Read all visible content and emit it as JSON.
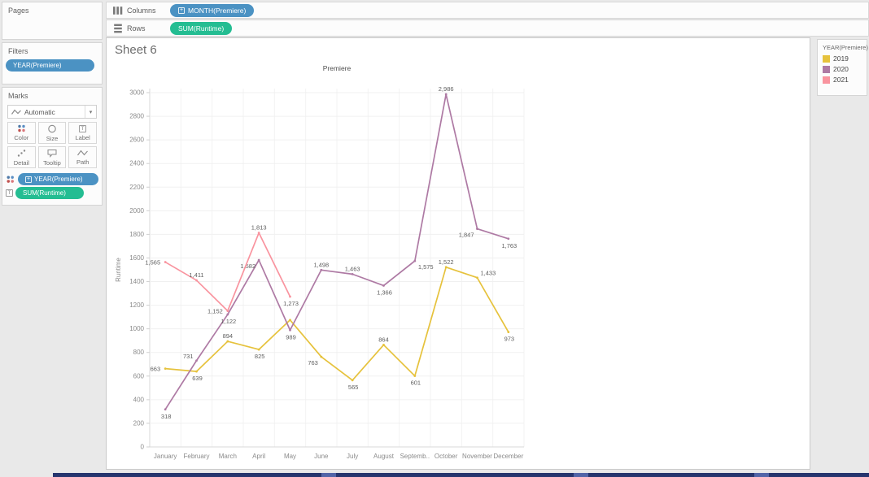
{
  "ui_colors": {
    "dimension_pill": "#4B92C3",
    "measure_pill": "#24BD92"
  },
  "icons": {
    "caret_down": "▾",
    "rows_glyph": "≡",
    "plus_glyph": "+",
    "label_glyph": "T"
  },
  "shelves": {
    "columns_label": "Columns",
    "columns_pill": "MONTH(Premiere)",
    "rows_label": "Rows",
    "rows_pill": "SUM(Runtime)"
  },
  "sidebar": {
    "pages_title": "Pages",
    "filters_title": "Filters",
    "filters_pill": "YEAR(Premiere)",
    "marks_title": "Marks",
    "mark_type": "Automatic",
    "buttons": [
      {
        "label": "Color"
      },
      {
        "label": "Size"
      },
      {
        "label": "Label"
      },
      {
        "label": "Detail"
      },
      {
        "label": "Tooltip"
      },
      {
        "label": "Path"
      }
    ],
    "pills": [
      {
        "label": "YEAR(Premiere)"
      },
      {
        "label": "SUM(Runtime)"
      }
    ]
  },
  "sheet_title": "Sheet 6",
  "legend": {
    "title": "YEAR(Premiere)",
    "items": [
      {
        "label": "2019",
        "color": "#E6C23C"
      },
      {
        "label": "2020",
        "color": "#AE7AA4"
      },
      {
        "label": "2021",
        "color": "#F9949F"
      }
    ]
  },
  "chart_data": {
    "type": "line",
    "title": "Premiere",
    "xlabel": "",
    "ylabel": "Runtime",
    "ylim": [
      0,
      3000
    ],
    "ytick_step": 200,
    "grid": true,
    "legend_position": "right",
    "categories": [
      "January",
      "February",
      "March",
      "April",
      "May",
      "June",
      "July",
      "August",
      "Septemb..",
      "October",
      "November",
      "December"
    ],
    "series": [
      {
        "name": "2019",
        "color": "#E6C23C",
        "values": [
          663,
          639,
          894,
          825,
          1075,
          763,
          565,
          864,
          601,
          1522,
          1433,
          973
        ],
        "labels": [
          "663",
          "639",
          "894",
          "825",
          "",
          "763",
          "565",
          "864",
          "601",
          "1,522",
          "1,433",
          "973"
        ],
        "label_pos": [
          "left",
          "below",
          "above",
          "below",
          "",
          "below-left",
          "below",
          "above",
          "below",
          "above",
          "above-right",
          "below"
        ]
      },
      {
        "name": "2020",
        "color": "#AE7AA4",
        "values": [
          318,
          731,
          1122,
          1582,
          989,
          1498,
          1463,
          1366,
          1575,
          2986,
          1847,
          1763
        ],
        "labels": [
          "318",
          "731",
          "1,122",
          "1,582",
          "989",
          "1,498",
          "1,463",
          "1,366",
          "1,575",
          "2,986",
          "1,847",
          "1,763"
        ],
        "label_pos": [
          "below",
          "above-left",
          "below",
          "below-left",
          "below",
          "above",
          "above",
          "below",
          "below-right",
          "above",
          "below-left",
          "below"
        ]
      },
      {
        "name": "2021",
        "color": "#F9949F",
        "values": [
          1565,
          1411,
          1152,
          1813,
          1273,
          null,
          null,
          null,
          null,
          null,
          null,
          null
        ],
        "labels": [
          "1,565",
          "1,411",
          "1,152",
          "1,813",
          "1,273"
        ],
        "label_pos": [
          "left",
          "above",
          "left",
          "above",
          "below"
        ]
      }
    ]
  }
}
